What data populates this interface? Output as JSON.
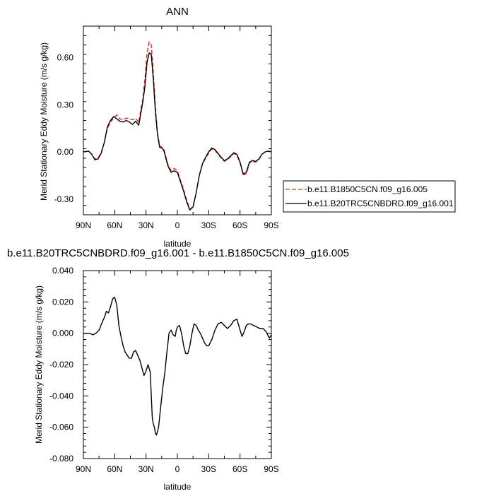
{
  "colors": {
    "red": "#e8262a",
    "black": "#000000"
  },
  "chart_data": [
    {
      "type": "line",
      "title": "ANN",
      "xlabel": "latitude",
      "ylabel": "Merid Stationary Eddy Moisture (m/s g/kg)",
      "xlim": [
        90,
        -90
      ],
      "ylim": [
        -0.4,
        0.8
      ],
      "xticks": [
        90,
        60,
        30,
        0,
        -30,
        -60,
        -90
      ],
      "xticklabels": [
        "90N",
        "60N",
        "30N",
        "0",
        "30S",
        "60S",
        "90S"
      ],
      "yticks": [
        -0.3,
        0,
        0.3,
        0.6
      ],
      "yticklabels": [
        "-0.30",
        "0.00",
        "0.30",
        "0.60"
      ],
      "grid": false,
      "legend": "right-outside",
      "series": [
        {
          "name": "b.e11.B1850C5CN.f09_g16.005",
          "color": "#e8262a",
          "dash": true,
          "x": [
            90,
            85,
            82,
            79,
            76,
            73,
            70,
            67,
            64,
            61,
            58,
            55,
            52,
            49,
            46,
            43,
            40,
            37,
            35,
            33,
            31,
            29,
            27,
            25,
            23,
            21,
            19,
            17,
            15,
            13,
            11,
            9,
            6,
            3,
            0,
            -3,
            -6,
            -9,
            -12,
            -15,
            -18,
            -21,
            -24,
            -27,
            -30,
            -33,
            -36,
            -39,
            -42,
            -45,
            -48,
            -51,
            -54,
            -57,
            -60,
            -63,
            -66,
            -69,
            -72,
            -75,
            -78,
            -81,
            -84,
            -87,
            -90
          ],
          "y": [
            0,
            0.005,
            -0.015,
            -0.045,
            -0.04,
            -0.005,
            0.06,
            0.15,
            0.19,
            0.215,
            0.235,
            0.21,
            0.205,
            0.215,
            0.21,
            0.205,
            0.215,
            0.185,
            0.27,
            0.34,
            0.47,
            0.63,
            0.7,
            0.68,
            0.5,
            0.28,
            0.12,
            0.04,
            0.03,
            0.02,
            -0.03,
            -0.08,
            -0.12,
            -0.105,
            -0.12,
            -0.18,
            -0.24,
            -0.31,
            -0.365,
            -0.345,
            -0.26,
            -0.15,
            -0.08,
            -0.04,
            -0.01,
            0.02,
            0.01,
            -0.015,
            -0.04,
            -0.06,
            -0.05,
            -0.03,
            -0.01,
            -0.02,
            -0.07,
            -0.145,
            -0.14,
            -0.07,
            -0.06,
            -0.065,
            -0.05,
            -0.015,
            0,
            0.005,
            0
          ]
        },
        {
          "name": "b.e11.B20TRC5CNBDRD.f09_g16.001",
          "color": "#000000",
          "dash": false,
          "x": [
            90,
            85,
            82,
            79,
            76,
            73,
            70,
            67,
            64,
            61,
            58,
            55,
            52,
            49,
            46,
            43,
            40,
            37,
            35,
            33,
            31,
            29,
            27,
            25,
            23,
            21,
            19,
            17,
            15,
            13,
            11,
            9,
            6,
            3,
            0,
            -3,
            -6,
            -9,
            -12,
            -15,
            -18,
            -21,
            -24,
            -27,
            -30,
            -33,
            -36,
            -39,
            -42,
            -45,
            -48,
            -51,
            -54,
            -57,
            -60,
            -63,
            -66,
            -69,
            -72,
            -75,
            -78,
            -81,
            -84,
            -87,
            -90
          ],
          "y": [
            0,
            0.005,
            -0.015,
            -0.05,
            -0.045,
            -0.01,
            0.06,
            0.16,
            0.2,
            0.225,
            0.21,
            0.195,
            0.19,
            0.2,
            0.19,
            0.175,
            0.195,
            0.17,
            0.245,
            0.32,
            0.42,
            0.57,
            0.63,
            0.62,
            0.46,
            0.25,
            0.11,
            0.03,
            0.025,
            0.01,
            -0.04,
            -0.09,
            -0.13,
            -0.12,
            -0.13,
            -0.19,
            -0.25,
            -0.32,
            -0.37,
            -0.35,
            -0.26,
            -0.15,
            -0.075,
            -0.035,
            0,
            0.025,
            0.015,
            -0.01,
            -0.035,
            -0.055,
            -0.045,
            -0.025,
            -0.005,
            -0.015,
            -0.065,
            -0.14,
            -0.13,
            -0.065,
            -0.055,
            -0.06,
            -0.045,
            -0.015,
            0,
            0.005,
            0
          ]
        }
      ]
    },
    {
      "type": "line",
      "title": "b.e11.B20TRC5CNBDRD.f09_g16.001 - b.e11.B1850C5CN.f09_g16.005",
      "xlabel": "latitude",
      "ylabel": "Merid Stationary Eddy Moisture (m/s g/kg)",
      "xlim": [
        90,
        -90
      ],
      "ylim": [
        -0.08,
        0.04
      ],
      "xticks": [
        90,
        60,
        30,
        0,
        -30,
        -60,
        -90
      ],
      "xticklabels": [
        "90N",
        "60N",
        "30N",
        "0",
        "30S",
        "60S",
        "90S"
      ],
      "yticks": [
        -0.08,
        -0.06,
        -0.04,
        -0.02,
        0,
        0.02,
        0.04
      ],
      "yticklabels": [
        "-0.080",
        "-0.060",
        "-0.040",
        "-0.020",
        "0.000",
        "0.020",
        "0.040"
      ],
      "grid": false,
      "series": [
        {
          "color": "#000000",
          "x": [
            90,
            87,
            84,
            81,
            78,
            75,
            72,
            70,
            68,
            66,
            64,
            62,
            60,
            58,
            56,
            54,
            52,
            50,
            48,
            46,
            44,
            42,
            40,
            38,
            36,
            34,
            32,
            30,
            28,
            26,
            25,
            24,
            23,
            22,
            21,
            20,
            18,
            16,
            14,
            12,
            10,
            8,
            6,
            4,
            2,
            1,
            0,
            -2,
            -4,
            -6,
            -8,
            -10,
            -12,
            -14,
            -16,
            -18,
            -20,
            -22,
            -24,
            -26,
            -28,
            -30,
            -33,
            -36,
            -39,
            -42,
            -45,
            -48,
            -51,
            -54,
            -57,
            -60,
            -62,
            -64,
            -66,
            -68,
            -70,
            -73,
            -76,
            -79,
            -82,
            -85,
            -88,
            -90
          ],
          "y": [
            0,
            0,
            0,
            -0.001,
            0,
            0.002,
            0.007,
            0.01,
            0.014,
            0.013,
            0.017,
            0.022,
            0.023,
            0.018,
            0.005,
            -0.002,
            -0.008,
            -0.012,
            -0.014,
            -0.016,
            -0.016,
            -0.012,
            -0.011,
            -0.014,
            -0.017,
            -0.022,
            -0.027,
            -0.024,
            -0.02,
            -0.025,
            -0.04,
            -0.054,
            -0.058,
            -0.06,
            -0.064,
            -0.065,
            -0.06,
            -0.047,
            -0.035,
            -0.025,
            -0.012,
            0,
            0.002,
            -0.001,
            -0.002,
            0.002,
            0.004,
            0.005,
            0,
            -0.008,
            -0.013,
            -0.013,
            -0.008,
            0,
            0.006,
            0.005,
            0.002,
            0,
            -0.003,
            -0.006,
            -0.008,
            -0.008,
            -0.004,
            0.002,
            0.006,
            0.007,
            0.005,
            0.003,
            0.005,
            0.008,
            0.009,
            0.002,
            -0.002,
            0.001,
            0.005,
            0.006,
            0.006,
            0.005,
            0.004,
            0.003,
            0.003,
            0.001,
            -0.003,
            -0.001
          ]
        }
      ]
    }
  ]
}
